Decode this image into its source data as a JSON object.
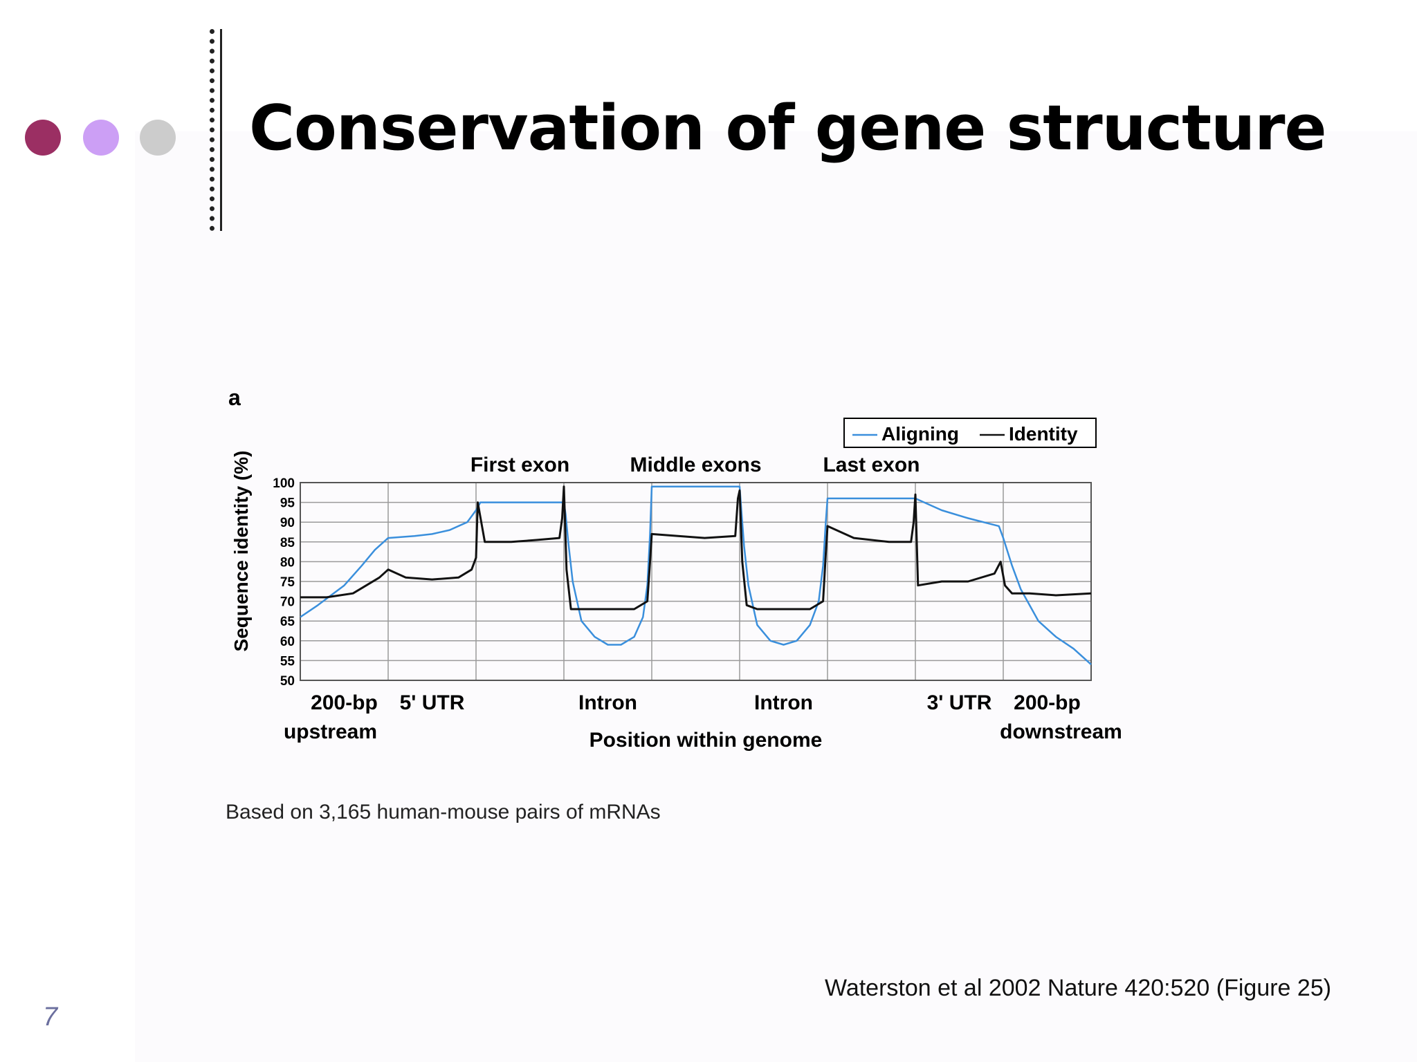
{
  "slide": {
    "title": "Conservation of gene structure",
    "number": "7",
    "caption": "Based on 3,165 human-mouse pairs of mRNAs",
    "citation": "Waterston et al 2002 Nature 420:520 (Figure 25)",
    "bullet_colors": [
      "#9b2f63",
      "#cc9ff5",
      "#cccccc"
    ]
  },
  "chart_data": {
    "type": "line",
    "panel_label": "a",
    "ylabel": "Sequence identity (%)",
    "xlabel": "Position within genome",
    "ylim": [
      50,
      100
    ],
    "yticks": [
      100,
      95,
      90,
      85,
      80,
      75,
      70,
      65,
      60,
      55,
      50
    ],
    "grid": true,
    "legend_position": "top-right",
    "regions": [
      {
        "label": "200-bp",
        "sublabel": "upstream"
      },
      {
        "label": "5' UTR",
        "sublabel": ""
      },
      {
        "label": "First exon",
        "sublabel": ""
      },
      {
        "label": "Intron",
        "sublabel": ""
      },
      {
        "label": "Middle exons",
        "sublabel": ""
      },
      {
        "label": "Intron",
        "sublabel": ""
      },
      {
        "label": "Last exon",
        "sublabel": ""
      },
      {
        "label": "3' UTR",
        "sublabel": ""
      },
      {
        "label": "200-bp",
        "sublabel": "downstream"
      }
    ],
    "series": [
      {
        "name": "Aligning",
        "color": "#3a8fdc",
        "x": [
          0,
          0.2,
          0.5,
          0.7,
          0.85,
          1.0,
          1.3,
          1.5,
          1.7,
          1.9,
          2.0,
          2.05,
          2.2,
          2.5,
          2.8,
          3.0,
          3.02,
          3.05,
          3.1,
          3.2,
          3.35,
          3.5,
          3.65,
          3.8,
          3.9,
          3.95,
          3.98,
          4.0,
          4.3,
          4.6,
          5.0,
          5.02,
          5.05,
          5.1,
          5.2,
          5.35,
          5.5,
          5.65,
          5.8,
          5.9,
          5.95,
          5.98,
          6.0,
          6.5,
          7.0,
          7.1,
          7.3,
          7.6,
          7.95,
          8.0,
          8.1,
          8.2,
          8.4,
          8.6,
          8.8,
          9.0
        ],
        "y": [
          66,
          69,
          74,
          79,
          83,
          86,
          86.5,
          87,
          88,
          90,
          93,
          95,
          95,
          95,
          95,
          95,
          92,
          85,
          75,
          65,
          61,
          59,
          59,
          61,
          66,
          74,
          87,
          99,
          99,
          99,
          99,
          93,
          84,
          74,
          64,
          60,
          59,
          60,
          64,
          70,
          79,
          90,
          96,
          96,
          96,
          95,
          93,
          91,
          89,
          86,
          79,
          73,
          65,
          61,
          58,
          54
        ]
      },
      {
        "name": "Identity",
        "color": "#111111",
        "x": [
          0,
          0.3,
          0.6,
          0.9,
          1.0,
          1.2,
          1.5,
          1.8,
          1.95,
          2.0,
          2.02,
          2.1,
          2.4,
          2.7,
          2.95,
          2.98,
          3.0,
          3.03,
          3.08,
          3.2,
          3.5,
          3.8,
          3.95,
          3.98,
          4.0,
          4.3,
          4.6,
          4.95,
          4.98,
          5.0,
          5.03,
          5.08,
          5.2,
          5.5,
          5.8,
          5.95,
          5.98,
          6.0,
          6.3,
          6.7,
          6.95,
          6.98,
          7.0,
          7.03,
          7.3,
          7.6,
          7.9,
          7.97,
          8.02,
          8.1,
          8.3,
          8.6,
          9.0
        ],
        "y": [
          71,
          71,
          72,
          76,
          78,
          76,
          75.5,
          76,
          78,
          81,
          95,
          85,
          85,
          85.5,
          86,
          91,
          99,
          78,
          68,
          68,
          68,
          68,
          70,
          80,
          87,
          86.5,
          86,
          86.5,
          96,
          98,
          80,
          69,
          68,
          68,
          68,
          70,
          82,
          89,
          86,
          85,
          85,
          90,
          97,
          74,
          75,
          75,
          77,
          80,
          74,
          72,
          72,
          71.5,
          72
        ]
      }
    ]
  }
}
